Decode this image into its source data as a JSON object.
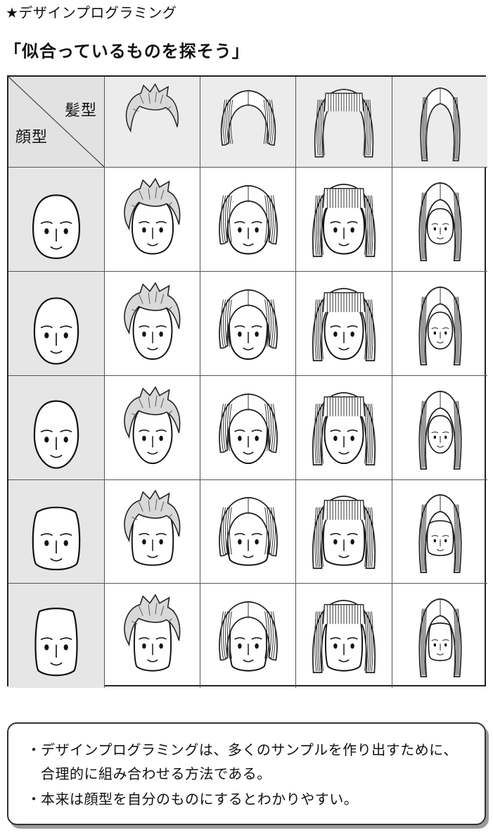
{
  "heading": "★デザインプログラミング",
  "title": "「似合っているものを探そう」",
  "table": {
    "hair_header": "髪型",
    "face_header": "顔型",
    "hair_styles": [
      "spiky-short-hair-icon",
      "bob-hair-icon",
      "bangs-long-hair-icon",
      "straight-long-hair-icon"
    ],
    "face_shapes": [
      "round-face-icon",
      "oval-face-icon",
      "egg-face-icon",
      "square-face-icon",
      "rectangle-face-icon"
    ]
  },
  "notes": {
    "bullet": "・",
    "items": [
      "デザインプログラミングは、多くのサンプルを作り出すために、合理的に組み合わせる方法である。",
      "本来は顔型を自分のものにするとわかりやすい。"
    ]
  },
  "colors": {
    "header_bg": "#ececec",
    "corner_bg": "#e2e2e2",
    "line": "#222222"
  }
}
